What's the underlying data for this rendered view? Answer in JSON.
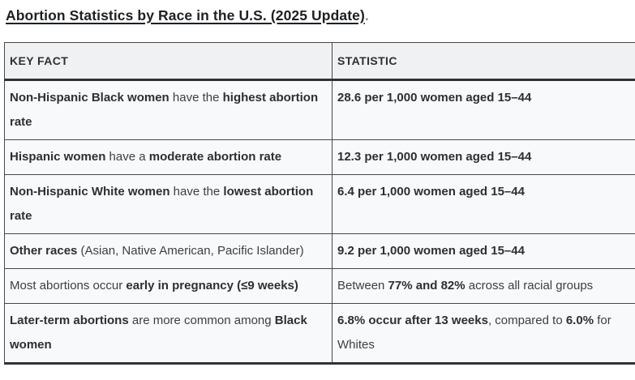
{
  "page": {
    "title": "Abortion Statistics by Race in the U.S. (2025 Update)",
    "title_suffix": "."
  },
  "table": {
    "headers": {
      "key_fact": "KEY FACT",
      "statistic": "STATISTIC"
    },
    "rows": [
      {
        "fact": [
          {
            "t": "Non-Hispanic Black women",
            "b": true
          },
          {
            "t": " have the ",
            "b": false
          },
          {
            "t": "highest abortion rate",
            "b": true
          }
        ],
        "stat": [
          {
            "t": "28.6 per 1,000 women aged 15–44",
            "b": true
          }
        ]
      },
      {
        "fact": [
          {
            "t": "Hispanic women",
            "b": true
          },
          {
            "t": " have a ",
            "b": false
          },
          {
            "t": "moderate abortion rate",
            "b": true
          }
        ],
        "stat": [
          {
            "t": "12.3 per 1,000 women aged 15–44",
            "b": true
          }
        ]
      },
      {
        "fact": [
          {
            "t": "Non-Hispanic White women",
            "b": true
          },
          {
            "t": " have the ",
            "b": false
          },
          {
            "t": "lowest abortion rate",
            "b": true
          }
        ],
        "stat": [
          {
            "t": "6.4 per 1,000 women aged 15–44",
            "b": true
          }
        ]
      },
      {
        "fact": [
          {
            "t": "Other races",
            "b": true
          },
          {
            "t": " (Asian, Native American, Pacific Islander)",
            "b": false
          }
        ],
        "stat": [
          {
            "t": "9.2 per 1,000 women aged 15–44",
            "b": true
          }
        ]
      },
      {
        "fact": [
          {
            "t": "Most abortions occur ",
            "b": false
          },
          {
            "t": "early in pregnancy (≤9 weeks)",
            "b": true
          }
        ],
        "stat": [
          {
            "t": "Between ",
            "b": false
          },
          {
            "t": "77% and 82%",
            "b": true
          },
          {
            "t": " across all racial groups",
            "b": false
          }
        ]
      },
      {
        "fact": [
          {
            "t": "Later-term abortions",
            "b": true
          },
          {
            "t": " are more common among ",
            "b": false
          },
          {
            "t": "Black women",
            "b": true
          }
        ],
        "stat": [
          {
            "t": "6.8% occur after 13 weeks",
            "b": true
          },
          {
            "t": ", compared to ",
            "b": false
          },
          {
            "t": "6.0%",
            "b": true
          },
          {
            "t": " for Whites",
            "b": false
          }
        ]
      }
    ]
  },
  "colors": {
    "row_background": "#f8f9fa",
    "header_background": "#eff1f2",
    "thin_border": "#45484b",
    "thick_border": "#303336",
    "text": "#34383b",
    "title_text": "#1d2023"
  }
}
